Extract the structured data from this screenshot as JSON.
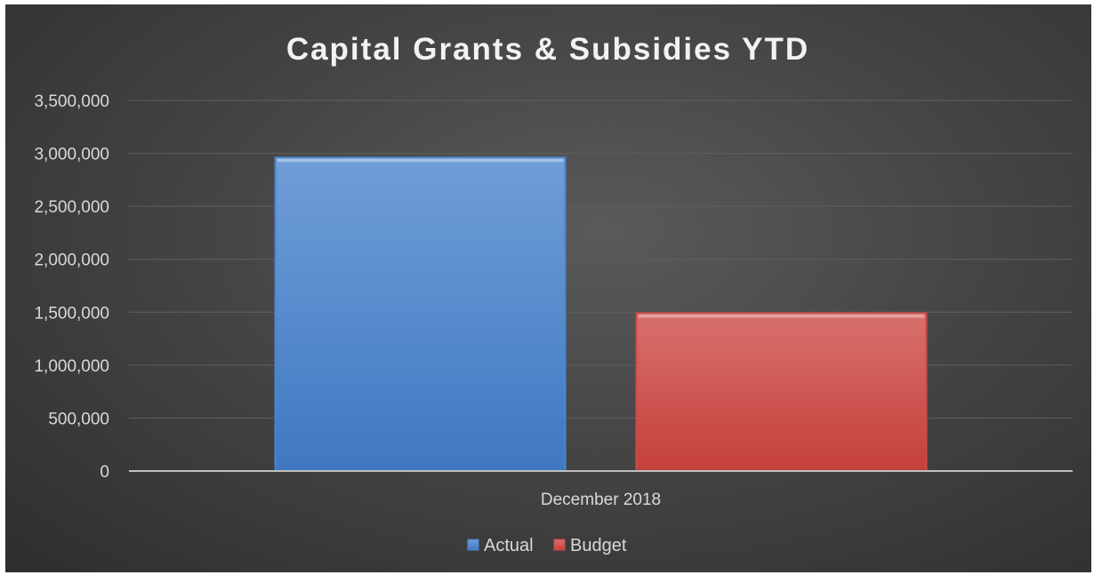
{
  "chart_data": {
    "type": "bar",
    "title": "Capital Grants & Subsidies YTD",
    "categories": [
      "December 2018"
    ],
    "series": [
      {
        "name": "Actual",
        "values": [
          2960000
        ],
        "color": "#4a86cf"
      },
      {
        "name": "Budget",
        "values": [
          1490000
        ],
        "color": "#cf4b47"
      }
    ],
    "ylim": [
      0,
      3500000
    ],
    "yticks": [
      0,
      500000,
      1000000,
      1500000,
      2000000,
      2500000,
      3000000,
      3500000
    ],
    "ytick_labels": [
      "0",
      "500,000",
      "1,000,000",
      "1,500,000",
      "2,000,000",
      "2,500,000",
      "3,000,000",
      "3,500,000"
    ],
    "grid": true,
    "legend_position": "bottom"
  }
}
